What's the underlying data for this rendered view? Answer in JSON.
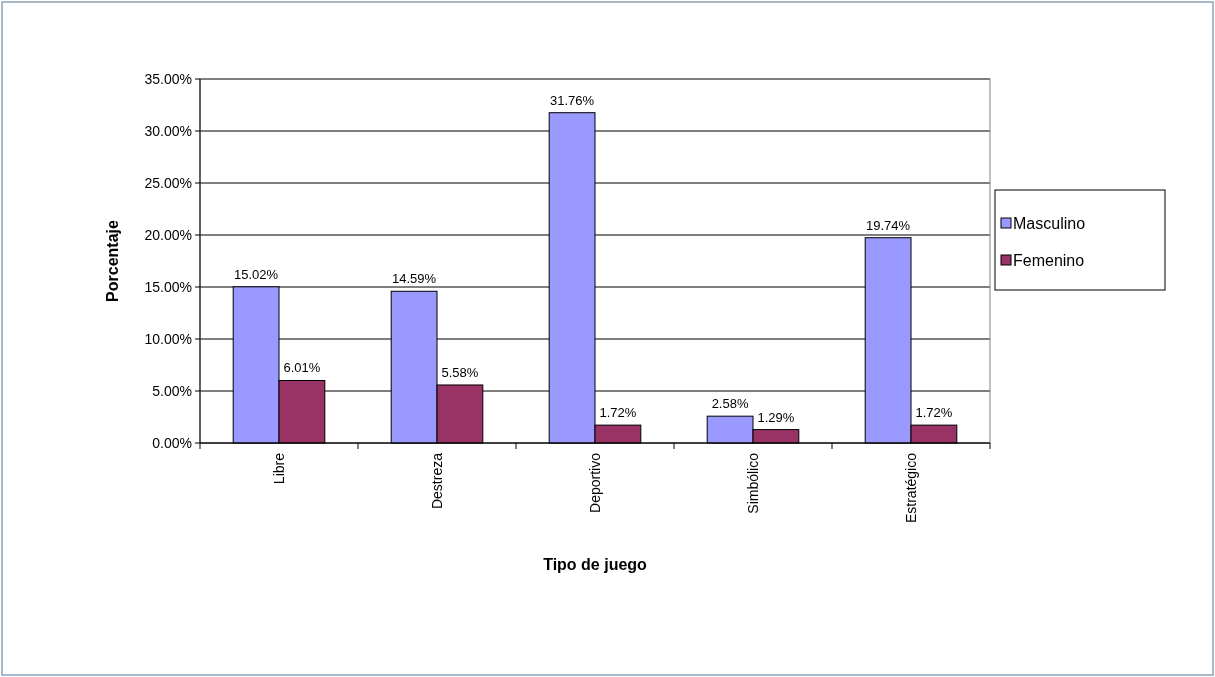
{
  "chart_data": {
    "type": "bar",
    "xlabel": "Tipo de juego",
    "ylabel": "Porcentaje",
    "categories": [
      "Libre",
      "Destreza",
      "Deportivo",
      "Simbólico",
      "Estratégico"
    ],
    "series": [
      {
        "name": "Masculino",
        "color": "#9999ff",
        "values": [
          15.02,
          14.59,
          31.76,
          2.58,
          19.74
        ],
        "value_labels": [
          "15.02%",
          "14.59%",
          "31.76%",
          "2.58%",
          "19.74%"
        ]
      },
      {
        "name": "Femenino",
        "color": "#993366",
        "values": [
          6.01,
          5.58,
          1.72,
          1.29,
          1.72
        ],
        "value_labels": [
          "6.01%",
          "5.58%",
          "1.72%",
          "1.29%",
          "1.72%"
        ]
      }
    ],
    "ylim": [
      0,
      35
    ],
    "yticks": [
      {
        "value": 0,
        "label": "0.00%"
      },
      {
        "value": 5,
        "label": "5.00%"
      },
      {
        "value": 10,
        "label": "10.00%"
      },
      {
        "value": 15,
        "label": "15.00%"
      },
      {
        "value": 20,
        "label": "20.00%"
      },
      {
        "value": 25,
        "label": "25.00%"
      },
      {
        "value": 30,
        "label": "30.00%"
      },
      {
        "value": 35,
        "label": "35.00%"
      }
    ],
    "grid": "y",
    "legend": "right"
  }
}
